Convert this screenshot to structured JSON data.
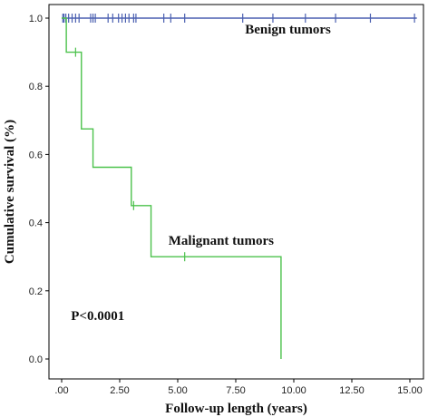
{
  "chart_data": {
    "type": "line",
    "xlabel": "Follow-up length (years)",
    "ylabel": "Cumulative survival (%)",
    "xlim": [
      0,
      15.75
    ],
    "ylim": [
      0,
      1.05
    ],
    "x_ticks": [
      ".00",
      "2.50",
      "5.00",
      "7.50",
      "10.00",
      "12.50",
      "15.00"
    ],
    "y_ticks": [
      "0.0",
      "0.2",
      "0.4",
      "0.6",
      "0.8",
      "1.0"
    ],
    "grid": false,
    "series": [
      {
        "name": "Benign tumors",
        "color": "#4a5fb0",
        "step_points": [
          [
            0,
            1.0
          ],
          [
            15.3,
            1.0
          ]
        ],
        "censored_x": [
          0.05,
          0.1,
          0.18,
          0.3,
          0.45,
          0.6,
          0.75,
          1.25,
          1.35,
          1.45,
          2.0,
          2.2,
          2.45,
          2.6,
          2.75,
          2.9,
          3.1,
          3.2,
          4.4,
          4.7,
          5.3,
          7.8,
          9.1,
          10.5,
          11.8,
          13.3,
          15.2
        ]
      },
      {
        "name": "Malignant tumors",
        "color": "#4cc24c",
        "step_points": [
          [
            0,
            1.0
          ],
          [
            0.2,
            0.9
          ],
          [
            0.85,
            0.675
          ],
          [
            1.35,
            0.5625
          ],
          [
            3.0,
            0.45
          ],
          [
            3.85,
            0.3
          ],
          [
            9.45,
            0.0
          ]
        ],
        "censored_x": [
          0.6,
          3.1,
          5.3
        ]
      }
    ],
    "annotations": [
      {
        "text": "Benign tumors",
        "x": 7.9,
        "y": 0.955
      },
      {
        "text": "Malignant tumors",
        "x": 4.6,
        "y": 0.335
      },
      {
        "text": "P<0.0001",
        "x": 0.4,
        "y": 0.115
      }
    ]
  }
}
